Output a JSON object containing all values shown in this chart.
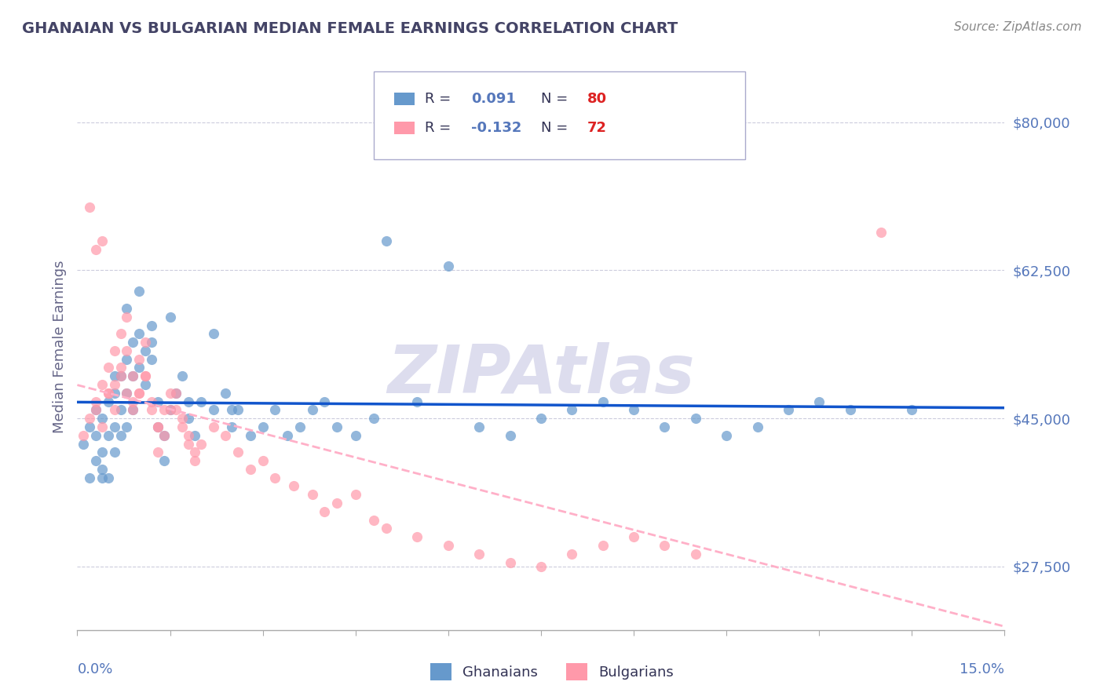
{
  "title": "GHANAIAN VS BULGARIAN MEDIAN FEMALE EARNINGS CORRELATION CHART",
  "source": "Source: ZipAtlas.com",
  "ylabel": "Median Female Earnings",
  "yticks": [
    27500,
    45000,
    62500,
    80000
  ],
  "ytick_labels": [
    "$27,500",
    "$45,000",
    "$62,500",
    "$80,000"
  ],
  "xlim": [
    0.0,
    0.15
  ],
  "ylim": [
    20000,
    87000
  ],
  "ghanaian_R": 0.091,
  "ghanaian_N": 80,
  "bulgarian_R": -0.132,
  "bulgarian_N": 72,
  "ghanaian_color": "#6699CC",
  "bulgarian_color": "#FF99AA",
  "trend_ghanaian_color": "#1155CC",
  "trend_bulgarian_color": "#FFB0C8",
  "background_color": "#FFFFFF",
  "grid_color": "#CCCCDD",
  "title_color": "#444466",
  "axis_label_color": "#5577BB",
  "watermark": "ZIPAtlas",
  "watermark_color": "#DDDDEE",
  "legend_ghanaian_label": "Ghanaians",
  "legend_bulgarian_label": "Bulgarians",
  "ghanaian_scatter_x": [
    0.001,
    0.002,
    0.002,
    0.003,
    0.003,
    0.003,
    0.004,
    0.004,
    0.004,
    0.005,
    0.005,
    0.005,
    0.006,
    0.006,
    0.006,
    0.007,
    0.007,
    0.007,
    0.008,
    0.008,
    0.008,
    0.009,
    0.009,
    0.009,
    0.01,
    0.01,
    0.011,
    0.011,
    0.012,
    0.012,
    0.013,
    0.013,
    0.014,
    0.014,
    0.015,
    0.016,
    0.017,
    0.018,
    0.019,
    0.02,
    0.022,
    0.024,
    0.025,
    0.026,
    0.028,
    0.03,
    0.032,
    0.034,
    0.036,
    0.038,
    0.04,
    0.042,
    0.045,
    0.048,
    0.05,
    0.055,
    0.06,
    0.065,
    0.07,
    0.075,
    0.08,
    0.085,
    0.09,
    0.095,
    0.1,
    0.105,
    0.11,
    0.115,
    0.12,
    0.125,
    0.004,
    0.006,
    0.008,
    0.01,
    0.012,
    0.015,
    0.018,
    0.022,
    0.025,
    0.135
  ],
  "ghanaian_scatter_y": [
    42000,
    44000,
    38000,
    46000,
    40000,
    43000,
    45000,
    41000,
    39000,
    47000,
    43000,
    38000,
    48000,
    44000,
    41000,
    50000,
    46000,
    43000,
    52000,
    48000,
    44000,
    54000,
    50000,
    46000,
    55000,
    51000,
    53000,
    49000,
    56000,
    52000,
    47000,
    44000,
    43000,
    40000,
    46000,
    48000,
    50000,
    45000,
    43000,
    47000,
    46000,
    48000,
    44000,
    46000,
    43000,
    44000,
    46000,
    43000,
    44000,
    46000,
    47000,
    44000,
    43000,
    45000,
    66000,
    47000,
    63000,
    44000,
    43000,
    45000,
    46000,
    47000,
    46000,
    44000,
    45000,
    43000,
    44000,
    46000,
    47000,
    46000,
    38000,
    50000,
    58000,
    60000,
    54000,
    57000,
    47000,
    55000,
    46000,
    46000
  ],
  "bulgarian_scatter_x": [
    0.001,
    0.002,
    0.002,
    0.003,
    0.003,
    0.004,
    0.004,
    0.005,
    0.005,
    0.006,
    0.006,
    0.007,
    0.007,
    0.008,
    0.008,
    0.009,
    0.009,
    0.01,
    0.01,
    0.011,
    0.011,
    0.012,
    0.013,
    0.013,
    0.014,
    0.015,
    0.016,
    0.017,
    0.018,
    0.019,
    0.02,
    0.022,
    0.024,
    0.026,
    0.028,
    0.03,
    0.032,
    0.035,
    0.038,
    0.04,
    0.042,
    0.045,
    0.048,
    0.05,
    0.055,
    0.06,
    0.065,
    0.07,
    0.075,
    0.08,
    0.085,
    0.09,
    0.095,
    0.1,
    0.003,
    0.004,
    0.005,
    0.006,
    0.007,
    0.008,
    0.009,
    0.01,
    0.011,
    0.012,
    0.013,
    0.014,
    0.015,
    0.016,
    0.017,
    0.018,
    0.019,
    0.13
  ],
  "bulgarian_scatter_y": [
    43000,
    45000,
    70000,
    47000,
    65000,
    49000,
    66000,
    51000,
    48000,
    53000,
    49000,
    55000,
    51000,
    57000,
    53000,
    50000,
    47000,
    52000,
    48000,
    54000,
    50000,
    47000,
    44000,
    41000,
    43000,
    46000,
    48000,
    45000,
    43000,
    41000,
    42000,
    44000,
    43000,
    41000,
    39000,
    40000,
    38000,
    37000,
    36000,
    34000,
    35000,
    36000,
    33000,
    32000,
    31000,
    30000,
    29000,
    28000,
    27500,
    29000,
    30000,
    31000,
    30000,
    29000,
    46000,
    44000,
    48000,
    46000,
    50000,
    48000,
    46000,
    48000,
    50000,
    46000,
    44000,
    46000,
    48000,
    46000,
    44000,
    42000,
    40000,
    67000
  ]
}
